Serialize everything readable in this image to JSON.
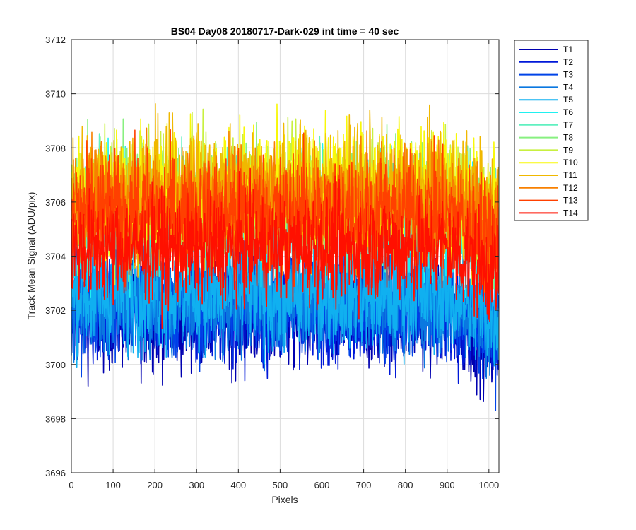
{
  "chart_data": {
    "type": "line",
    "title": "BS04 Day08 20180717-Dark-029 int time = 40 sec",
    "xlabel": "Pixels",
    "ylabel": "Track Mean Signal (ADU/pix)",
    "xlim": [
      0,
      1024
    ],
    "ylim": [
      3696,
      3712
    ],
    "xticks": [
      0,
      100,
      200,
      300,
      400,
      500,
      600,
      700,
      800,
      900,
      1000
    ],
    "yticks": [
      3696,
      3698,
      3700,
      3702,
      3704,
      3706,
      3708,
      3710,
      3712
    ],
    "grid": true,
    "legend_position": "outside-top-right",
    "n_points": 1024,
    "series": [
      {
        "name": "T1",
        "color": "#0000b0",
        "mean": 3701.8,
        "noise": 1.0
      },
      {
        "name": "T2",
        "color": "#0018d8",
        "mean": 3702.0,
        "noise": 1.0
      },
      {
        "name": "T3",
        "color": "#0044e8",
        "mean": 3702.2,
        "noise": 1.0
      },
      {
        "name": "T4",
        "color": "#0a78e0",
        "mean": 3702.4,
        "noise": 1.0
      },
      {
        "name": "T5",
        "color": "#10b0f0",
        "mean": 3702.6,
        "noise": 1.0
      },
      {
        "name": "T6",
        "color": "#20f0f0",
        "mean": 3705.4,
        "noise": 1.1
      },
      {
        "name": "T7",
        "color": "#60f0c0",
        "mean": 3705.8,
        "noise": 1.1
      },
      {
        "name": "T8",
        "color": "#88f080",
        "mean": 3706.0,
        "noise": 1.1
      },
      {
        "name": "T9",
        "color": "#c8f040",
        "mean": 3706.2,
        "noise": 1.1
      },
      {
        "name": "T10",
        "color": "#f8f808",
        "mean": 3706.4,
        "noise": 1.2
      },
      {
        "name": "T11",
        "color": "#f0b800",
        "mean": 3706.4,
        "noise": 1.2
      },
      {
        "name": "T12",
        "color": "#f88000",
        "mean": 3706.0,
        "noise": 1.1
      },
      {
        "name": "T13",
        "color": "#ff4000",
        "mean": 3705.6,
        "noise": 1.1
      },
      {
        "name": "T14",
        "color": "#ff1000",
        "mean": 3704.3,
        "noise": 1.0
      }
    ]
  }
}
